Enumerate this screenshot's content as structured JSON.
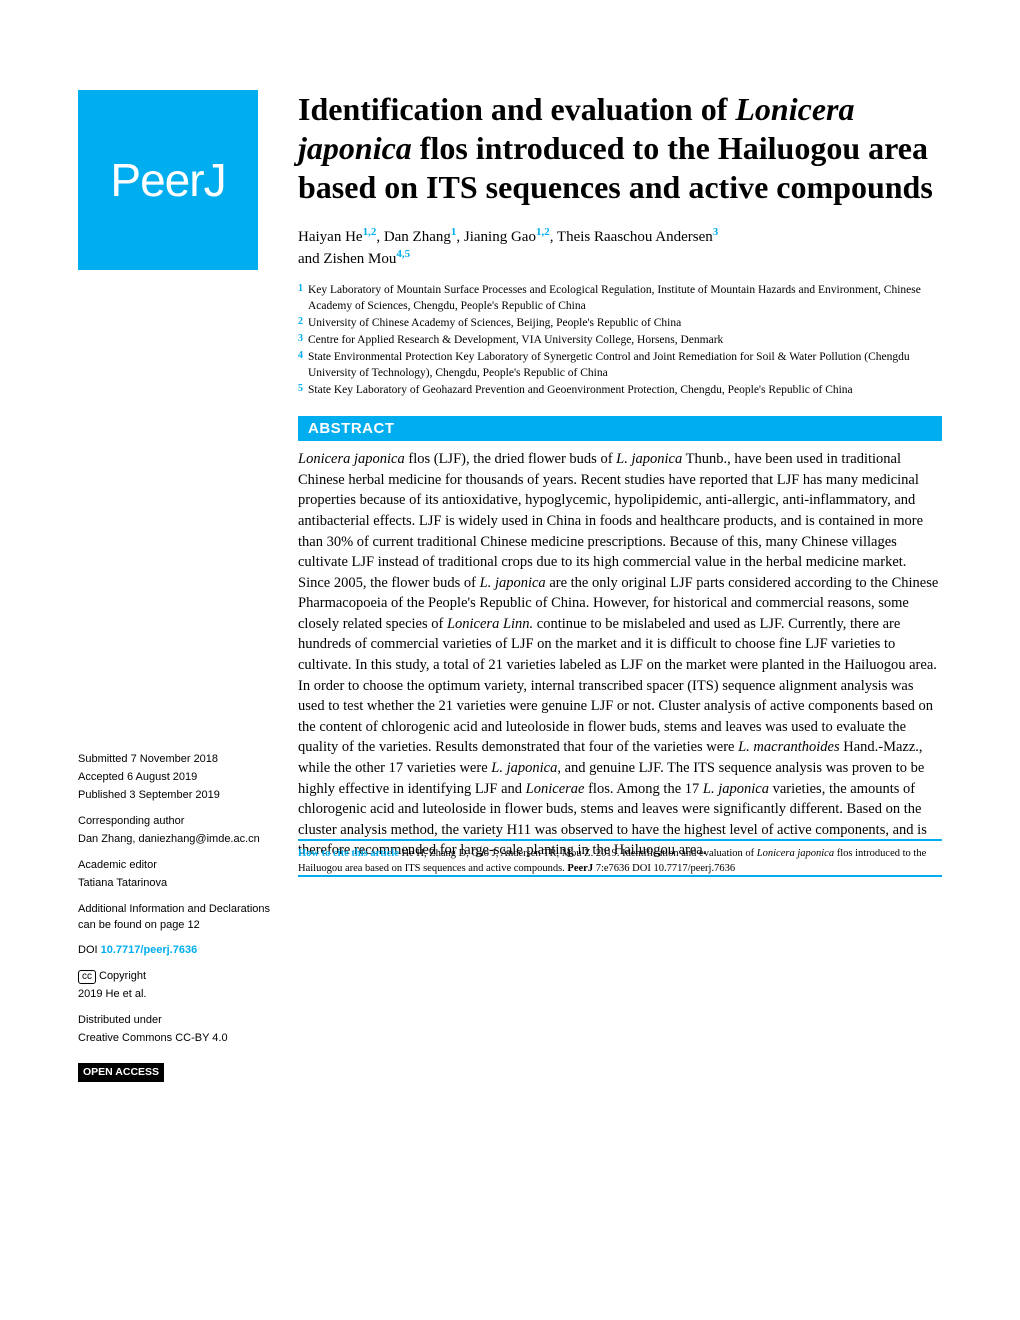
{
  "logo": {
    "text": "PeerJ"
  },
  "title": {
    "parts": [
      {
        "t": "Identification and evaluation of ",
        "i": false
      },
      {
        "t": "Lonicera japonica",
        "i": true
      },
      {
        "t": " flos introduced to the Hailuogou area based on ITS sequences and active compounds",
        "i": false
      }
    ],
    "font_size": 32,
    "color": "#000000"
  },
  "authors_line1": "Haiyan He",
  "authors_sup1": "1,2",
  "authors_p2": ", Dan Zhang",
  "authors_sup2": "1",
  "authors_p3": ", Jianing Gao",
  "authors_sup3": "1,2",
  "authors_p4": ", Theis Raaschou Andersen",
  "authors_sup4": "3",
  "authors_line2": "and Zishen Mou",
  "authors_sup5": "4,5",
  "affiliations": [
    {
      "n": "1",
      "t": "Key Laboratory of Mountain Surface Processes and Ecological Regulation, Institute of Mountain Hazards and Environment, Chinese Academy of Sciences, Chengdu, People's Republic of China"
    },
    {
      "n": "2",
      "t": "University of Chinese Academy of Sciences, Beijing, People's Republic of China"
    },
    {
      "n": "3",
      "t": "Centre for Applied Research & Development, VIA University College, Horsens, Denmark"
    },
    {
      "n": "4",
      "t": "State Environmental Protection Key Laboratory of Synergetic Control and Joint Remediation for Soil & Water Pollution (Chengdu University of Technology), Chengdu, People's Republic of China"
    },
    {
      "n": "5",
      "t": "State Key Laboratory of Geohazard Prevention and Geoenvironment Protection, Chengdu, People's Republic of China"
    }
  ],
  "abstract_label": "ABSTRACT",
  "abstract_parts": [
    {
      "t": "Lonicera japonica",
      "i": true
    },
    {
      "t": " flos (LJF), the dried flower buds of ",
      "i": false
    },
    {
      "t": "L. japonica",
      "i": true
    },
    {
      "t": " Thunb., have been used in traditional Chinese herbal medicine for thousands of years. Recent studies have reported that LJF has many medicinal properties because of its antioxidative, hypoglycemic, hypolipidemic, anti-allergic, anti-inflammatory, and antibacterial effects. LJF is widely used in China in foods and healthcare products, and is contained in more than 30% of current traditional Chinese medicine prescriptions. Because of this, many Chinese villages cultivate LJF instead of traditional crops due to its high commercial value in the herbal medicine market. Since 2005, the flower buds of ",
      "i": false
    },
    {
      "t": "L. japonica",
      "i": true
    },
    {
      "t": " are the only original LJF parts considered according to the Chinese Pharmacopoeia of the People's Republic of China. However, for historical and commercial reasons, some closely related species of ",
      "i": false
    },
    {
      "t": "Lonicera Linn.",
      "i": true
    },
    {
      "t": " continue to be mislabeled and used as LJF. Currently, there are hundreds of commercial varieties of LJF on the market and it is difficult to choose fine LJF varieties to cultivate. In this study, a total of 21 varieties labeled as LJF on the market were planted in the Hailuogou area. In order to choose the optimum variety, internal transcribed spacer (ITS) sequence alignment analysis was used to test whether the 21 varieties were genuine LJF or not. Cluster analysis of active components based on the content of chlorogenic acid and luteoloside in flower buds, stems and leaves was used to evaluate the quality of the varieties. Results demonstrated that four of the varieties were ",
      "i": false
    },
    {
      "t": "L. macranthoides",
      "i": true
    },
    {
      "t": " Hand.-Mazz., while the other 17 varieties were ",
      "i": false
    },
    {
      "t": "L. japonica",
      "i": true
    },
    {
      "t": ", and genuine LJF. The ITS sequence analysis was proven to be highly effective in identifying LJF and ",
      "i": false
    },
    {
      "t": "Lonicerae",
      "i": true
    },
    {
      "t": " flos. Among the 17 ",
      "i": false
    },
    {
      "t": "L. japonica",
      "i": true
    },
    {
      "t": " varieties, the amounts of chlorogenic acid and luteoloside in flower buds, stems and leaves were significantly different. Based on the cluster analysis method, the variety H11 was observed to have the highest level of active components, and is therefore recommended for large-scale planting in the Hailuogou area.",
      "i": false
    }
  ],
  "sidebar": {
    "submitted_label": "Submitted",
    "submitted": "7 November 2018",
    "accepted_label": "Accepted",
    "accepted": "6 August 2019",
    "published_label": "Published",
    "published": "3 September 2019",
    "corresponding_label": "Corresponding author",
    "corresponding": "Dan Zhang, daniezhang@imde.ac.cn",
    "editor_label": "Academic editor",
    "editor": "Tatiana Tatarinova",
    "additional": "Additional Information and Declarations can be found on page 12",
    "doi_label": "DOI",
    "doi": "10.7717/peerj.7636",
    "copyright_label": "Copyright",
    "copyright": "2019 He et al.",
    "distributed": "Distributed under",
    "license": "Creative Commons CC-BY 4.0",
    "open_access": "OPEN ACCESS"
  },
  "citation": {
    "label": "How to cite this article",
    "text1": " He H, Zhang D, Gao J, Andersen TR, Mou Z. 2019. Identification and evaluation of ",
    "italic1": "Lonicera japonica",
    "text2": " flos introduced to the Hailuogou area based on ITS sequences and active compounds. ",
    "journal": "PeerJ",
    "text3": " 7:e7636 DOI 10.7717/peerj.7636"
  },
  "colors": {
    "brand": "#00aeef",
    "text": "#000000",
    "background": "#ffffff"
  }
}
